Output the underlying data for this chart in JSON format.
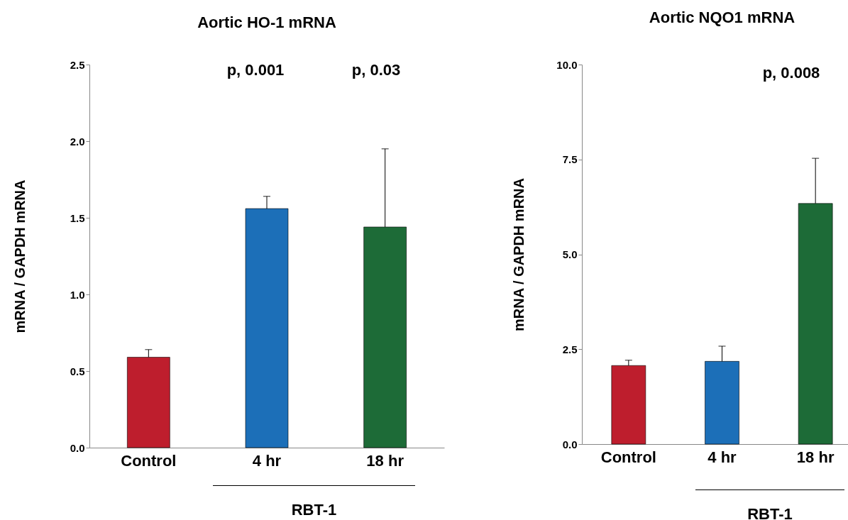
{
  "chart_data": [
    {
      "type": "bar",
      "title": "Aortic HO-1 mRNA",
      "ylabel": "mRNA / GAPDH mRNA",
      "categories": [
        "Control",
        "4 hr",
        "18 hr"
      ],
      "values": [
        0.59,
        1.56,
        1.44
      ],
      "colors": [
        "#be1e2d",
        "#1c6fb8",
        "#1d6b37"
      ],
      "errors": [
        [
          0.59,
          0.64
        ],
        [
          1.56,
          1.64
        ],
        [
          1.44,
          1.95
        ]
      ],
      "ylim": [
        0,
        2.5
      ],
      "yticks": [
        {
          "value": 0,
          "label": "0.0"
        },
        {
          "value": 0.5,
          "label": "0.5"
        },
        {
          "value": 1,
          "label": "1.0"
        },
        {
          "value": 1.5,
          "label": "1.5"
        },
        {
          "value": 2,
          "label": "2.0"
        },
        {
          "value": 2.5,
          "label": "2.5"
        }
      ],
      "grid": false,
      "legend": false,
      "annotations": [
        "p, 0.001",
        "p, 0.03",
        "RBT-1"
      ]
    },
    {
      "type": "bar",
      "title": "Aortic  NQO1 mRNA",
      "ylabel": "mRNA / GAPDH mRNA",
      "categories": [
        "Control",
        "4 hr",
        "18 hr"
      ],
      "values": [
        2.07,
        2.18,
        6.34
      ],
      "colors": [
        "#be1e2d",
        "#1c6fb8",
        "#1d6b37"
      ],
      "errors": [
        [
          2.07,
          2.21
        ],
        [
          2.18,
          2.58
        ],
        [
          6.34,
          7.53
        ]
      ],
      "ylim": [
        0,
        10
      ],
      "yticks": [
        {
          "value": 0,
          "label": "0.0"
        },
        {
          "value": 2.5,
          "label": "2.5"
        },
        {
          "value": 5,
          "label": "5.0"
        },
        {
          "value": 7.5,
          "label": "7.5"
        },
        {
          "value": 10,
          "label": "10.0"
        }
      ],
      "grid": false,
      "legend": false,
      "annotations": [
        "p, 0.008",
        "RBT-1"
      ]
    }
  ]
}
